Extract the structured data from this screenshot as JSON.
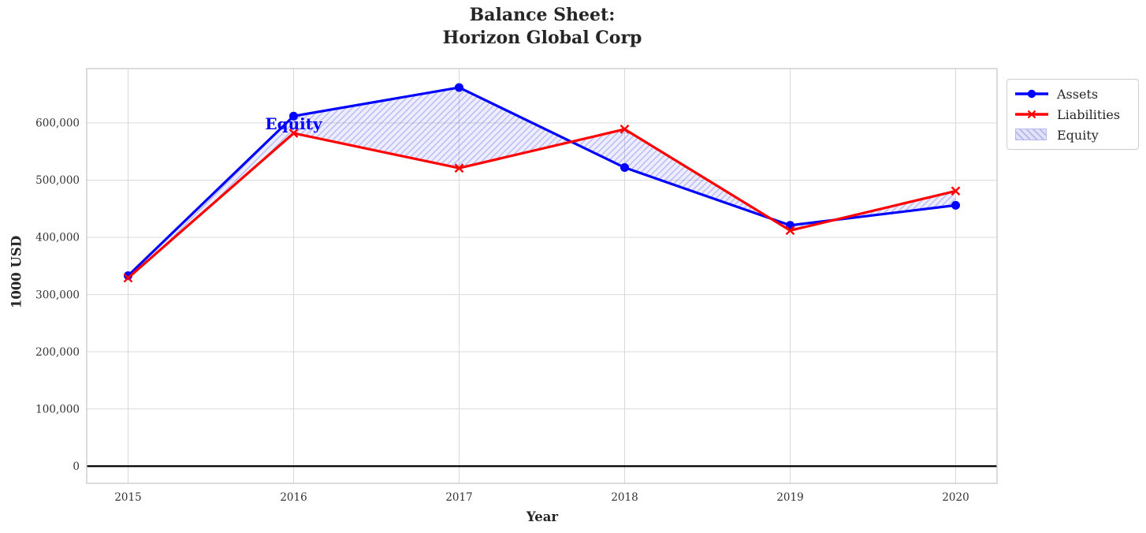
{
  "figure": {
    "background": "#ffffff"
  },
  "chart_data": {
    "type": "line",
    "title": "Balance Sheet:\nHorizon Global Corp",
    "title_lines": [
      "Balance Sheet:",
      "Horizon Global Corp"
    ],
    "xlabel": "Year",
    "ylabel": "1000 USD",
    "x": [
      2015,
      2016,
      2017,
      2018,
      2019,
      2020
    ],
    "xtick_labels": [
      "2015",
      "2016",
      "2017",
      "2018",
      "2019",
      "2020"
    ],
    "series": [
      {
        "name": "Assets",
        "color": "#0000ff",
        "marker": "circle",
        "line_width": 3.2,
        "values": [
          333000,
          612000,
          662000,
          522000,
          421000,
          456000
        ]
      },
      {
        "name": "Liabilities",
        "color": "#ff0000",
        "marker": "x",
        "line_width": 3.2,
        "values": [
          329000,
          582000,
          521000,
          589000,
          412000,
          481000
        ]
      }
    ],
    "equity_band": {
      "name": "Equity",
      "between": [
        "Assets",
        "Liabilities"
      ],
      "derived_values": [
        4000,
        30000,
        141000,
        -67000,
        9000,
        -25000
      ],
      "fill_color": "rgba(60,60,235,0.09)",
      "hatch_color": "rgba(75,75,225,0.30)",
      "hatch": "//",
      "legend_patch_bg": "#e2e2f6",
      "legend_patch_edge": "#b9b9ec"
    },
    "annotation": {
      "text": "Equity",
      "x": 2016,
      "y": 598000,
      "color": "#0000ff"
    },
    "yticks": [
      0,
      100000,
      200000,
      300000,
      400000,
      500000,
      600000
    ],
    "ytick_labels": [
      "0",
      "100,000",
      "200,000",
      "300,000",
      "400,000",
      "500,000",
      "600,000"
    ],
    "ylim": [
      -30000,
      695000
    ],
    "x_margin": 0.25,
    "zero_line": {
      "show": true,
      "color": "#000000",
      "width": 2.2
    },
    "grid": {
      "show": true,
      "color": "#d9d9d9"
    },
    "spine_color": "#c9c9c9",
    "tick_label_color": "#333333",
    "legend": {
      "position": "outside-right",
      "entries": [
        "Assets",
        "Liabilities",
        "Equity"
      ]
    }
  }
}
